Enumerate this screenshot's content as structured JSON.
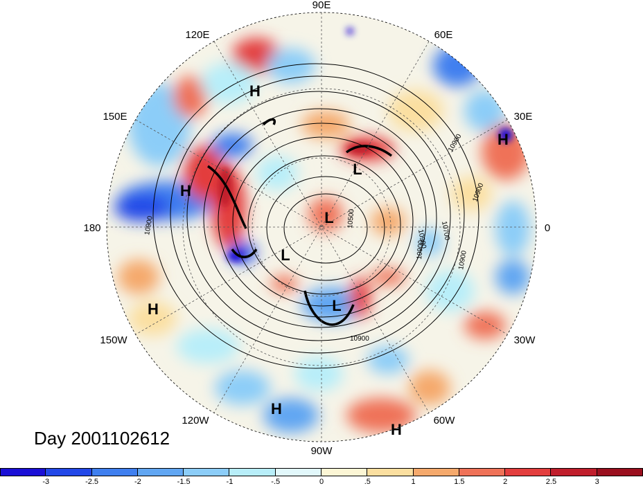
{
  "title": "Day 2001102612",
  "map": {
    "projection": "polar stereographic, northern hemisphere",
    "longitude_labels": [
      "90E",
      "60E",
      "30E",
      "0",
      "30W",
      "60W",
      "90W",
      "120W",
      "150W",
      "180",
      "150E",
      "120E"
    ],
    "pressure_centers": [
      {
        "type": "H",
        "region": "East Siberia"
      },
      {
        "type": "H",
        "region": "Middle East"
      },
      {
        "type": "H",
        "region": "North Pacific"
      },
      {
        "type": "H",
        "region": "Eastern Pacific"
      },
      {
        "type": "H",
        "region": "Tropical Eastern Pacific"
      },
      {
        "type": "H",
        "region": "Tropical Atlantic"
      },
      {
        "type": "L",
        "region": "Siberia"
      },
      {
        "type": "L",
        "region": "Arctic"
      },
      {
        "type": "L",
        "region": "Beaufort Sea"
      },
      {
        "type": "L",
        "region": "Eastern Canada"
      }
    ],
    "contour_labels": [
      "10900",
      "10900",
      "10700",
      "10500",
      "10900",
      "10900",
      "10900",
      "10900",
      "10900"
    ]
  },
  "colorbar": {
    "ticks": [
      "-3",
      "-2.5",
      "-2",
      "-1.5",
      "-1",
      "-.5",
      "0",
      ".5",
      "1",
      "1.5",
      "2",
      "2.5",
      "3"
    ],
    "colors": [
      "#1a0fd6",
      "#2248e8",
      "#3f7fef",
      "#61a6f2",
      "#8ccdf8",
      "#b8eef9",
      "#e2f8fb",
      "#fcf6d5",
      "#fbdfa0",
      "#f5a96c",
      "#ef7258",
      "#e33e3e",
      "#c01e2c",
      "#9a0f1e"
    ]
  }
}
